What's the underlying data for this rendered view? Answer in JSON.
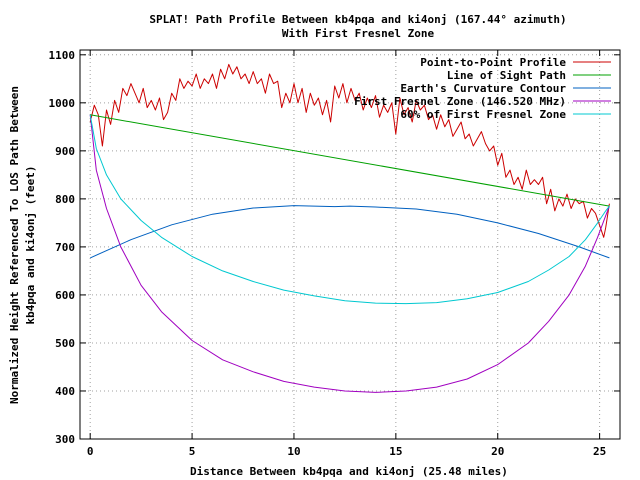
{
  "chart_data": {
    "type": "line",
    "title": "SPLAT! Path Profile Between kb4pqa and ki4onj (167.44° azimuth)",
    "subtitle": "With First Fresnel Zone",
    "xlabel": "Distance Between kb4pqa and ki4onj (25.48 miles)",
    "ylabel_line1": "Normalized Height Referenced To LOS Path Between",
    "ylabel_line2": "kb4pqa and ki4onj (feet)",
    "xlim": [
      -0.5,
      26
    ],
    "ylim": [
      300,
      1110
    ],
    "x_ticks": [
      0,
      5,
      10,
      15,
      20,
      25
    ],
    "y_ticks": [
      300,
      400,
      500,
      600,
      700,
      800,
      900,
      1000,
      1100
    ],
    "grid": true,
    "legend_position": "top-right",
    "series": [
      {
        "name": "Point-to-Point Profile",
        "color": "#cc0000",
        "x": [
          0,
          0.2,
          0.4,
          0.6,
          0.8,
          1.0,
          1.2,
          1.4,
          1.6,
          1.8,
          2.0,
          2.2,
          2.4,
          2.6,
          2.8,
          3.0,
          3.2,
          3.4,
          3.6,
          3.8,
          4.0,
          4.2,
          4.4,
          4.6,
          4.8,
          5.0,
          5.2,
          5.4,
          5.6,
          5.8,
          6.0,
          6.2,
          6.4,
          6.6,
          6.8,
          7.0,
          7.2,
          7.4,
          7.6,
          7.8,
          8.0,
          8.2,
          8.4,
          8.6,
          8.8,
          9.0,
          9.2,
          9.4,
          9.6,
          9.8,
          10.0,
          10.2,
          10.4,
          10.6,
          10.8,
          11.0,
          11.2,
          11.4,
          11.6,
          11.8,
          12.0,
          12.2,
          12.4,
          12.6,
          12.8,
          13.0,
          13.2,
          13.4,
          13.6,
          13.8,
          14.0,
          14.2,
          14.4,
          14.6,
          14.8,
          15.0,
          15.2,
          15.4,
          15.6,
          15.8,
          16.0,
          16.2,
          16.4,
          16.6,
          16.8,
          17.0,
          17.2,
          17.4,
          17.6,
          17.8,
          18.0,
          18.2,
          18.4,
          18.6,
          18.8,
          19.0,
          19.2,
          19.4,
          19.6,
          19.8,
          20.0,
          20.2,
          20.4,
          20.6,
          20.8,
          21.0,
          21.2,
          21.4,
          21.6,
          21.8,
          22.0,
          22.2,
          22.4,
          22.6,
          22.8,
          23.0,
          23.2,
          23.4,
          23.6,
          23.8,
          24.0,
          24.2,
          24.4,
          24.6,
          24.8,
          25.0,
          25.2,
          25.3,
          25.48
        ],
        "y": [
          960,
          995,
          975,
          910,
          985,
          955,
          1005,
          980,
          1030,
          1015,
          1040,
          1020,
          1000,
          1030,
          990,
          1005,
          985,
          1010,
          965,
          980,
          1020,
          1005,
          1050,
          1030,
          1045,
          1035,
          1060,
          1030,
          1050,
          1040,
          1060,
          1030,
          1070,
          1050,
          1080,
          1060,
          1075,
          1050,
          1060,
          1040,
          1065,
          1040,
          1050,
          1020,
          1060,
          1040,
          1045,
          990,
          1020,
          1000,
          1040,
          1000,
          1030,
          980,
          1020,
          995,
          1010,
          975,
          1005,
          960,
          1035,
          1010,
          1040,
          1000,
          1030,
          1005,
          1020,
          985,
          1010,
          990,
          1015,
          970,
          995,
          980,
          1000,
          935,
          1010,
          975,
          990,
          960,
          1005,
          985,
          995,
          965,
          975,
          945,
          975,
          950,
          965,
          930,
          945,
          960,
          925,
          935,
          910,
          925,
          940,
          915,
          900,
          910,
          870,
          895,
          845,
          860,
          830,
          845,
          820,
          860,
          830,
          840,
          830,
          845,
          790,
          820,
          775,
          800,
          785,
          810,
          780,
          800,
          790,
          795,
          760,
          780,
          770,
          745,
          720,
          740,
          790
        ]
      },
      {
        "name": "Line of Sight Path",
        "color": "#00a000",
        "x": [
          0,
          25.48
        ],
        "y": [
          975,
          785
        ]
      },
      {
        "name": "Earth's Curvature Contour",
        "color": "#0060c0",
        "x": [
          0,
          2,
          4,
          6,
          8,
          10,
          12,
          12.74,
          14,
          16,
          18,
          20,
          22,
          24,
          25.48
        ],
        "y": [
          677,
          715,
          746,
          768,
          781,
          786,
          784,
          785,
          783,
          779,
          768,
          750,
          728,
          700,
          677
        ]
      },
      {
        "name": "First Fresnel Zone (146.520 MHz)",
        "color": "#a000c0",
        "x": [
          0,
          0.3,
          0.8,
          1.5,
          2.5,
          3.5,
          5,
          6.5,
          8,
          9.5,
          11,
          12.5,
          14,
          15.5,
          17,
          18.5,
          20,
          21.5,
          22.5,
          23.5,
          24.3,
          24.9,
          25.3,
          25.48
        ],
        "y": [
          975,
          860,
          780,
          700,
          620,
          565,
          505,
          465,
          440,
          420,
          408,
          400,
          397,
          400,
          408,
          425,
          455,
          500,
          545,
          600,
          660,
          720,
          765,
          785
        ]
      },
      {
        "name": "60% of First Fresnel Zone",
        "color": "#00c8d0",
        "x": [
          0,
          0.3,
          0.8,
          1.5,
          2.5,
          3.5,
          5,
          6.5,
          8,
          9.5,
          11,
          12.5,
          14,
          15.5,
          17,
          18.5,
          20,
          21.5,
          22.5,
          23.5,
          24.3,
          24.9,
          25.3,
          25.48
        ],
        "y": [
          975,
          905,
          850,
          800,
          755,
          720,
          680,
          650,
          628,
          610,
          598,
          588,
          583,
          582,
          584,
          592,
          605,
          628,
          652,
          680,
          715,
          750,
          775,
          785
        ]
      }
    ]
  }
}
